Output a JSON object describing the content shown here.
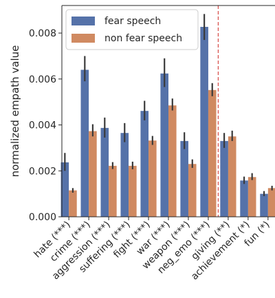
{
  "chart_data": {
    "type": "bar",
    "title": "",
    "xlabel": "",
    "ylabel": "normalized empath value",
    "ylim": [
      0,
      0.0092
    ],
    "yticks": [
      "0.000",
      "0.002",
      "0.004",
      "0.006",
      "0.008"
    ],
    "ytick_values": [
      0,
      0.002,
      0.004,
      0.006,
      0.008
    ],
    "grid": false,
    "legend_position": "top-left",
    "categories": [
      "hate (***)",
      "crime (***)",
      "aggression (***)",
      "suffering (***)",
      "fight (***)",
      "war (***)",
      "weapon (***)",
      "neg_emo (***)",
      "giving (**)",
      "achievement (*)",
      "fun (*)"
    ],
    "series": [
      {
        "name": "fear speech",
        "color": "#5572a9",
        "values": [
          0.00237,
          0.0064,
          0.00387,
          0.00365,
          0.00461,
          0.00624,
          0.0033,
          0.00827,
          0.0033,
          0.00158,
          0.001
        ],
        "error_low": [
          0.002,
          0.0059,
          0.00345,
          0.00325,
          0.0042,
          0.00565,
          0.00295,
          0.0077,
          0.003,
          0.00143,
          0.0009
        ],
        "error_high": [
          0.00278,
          0.007,
          0.00432,
          0.00408,
          0.00505,
          0.0069,
          0.00368,
          0.00883,
          0.00365,
          0.00175,
          0.00112
        ]
      },
      {
        "name": "non fear speech",
        "color": "#d08a61",
        "values": [
          0.00115,
          0.00373,
          0.00222,
          0.00222,
          0.00332,
          0.00485,
          0.0023,
          0.00552,
          0.0035,
          0.00173,
          0.00125
        ],
        "error_low": [
          0.00105,
          0.0035,
          0.00208,
          0.00207,
          0.00313,
          0.00463,
          0.00213,
          0.00525,
          0.0033,
          0.0016,
          0.00115
        ],
        "error_high": [
          0.00125,
          0.00403,
          0.00238,
          0.0024,
          0.00352,
          0.00515,
          0.0025,
          0.00582,
          0.00375,
          0.0019,
          0.00135
        ]
      }
    ],
    "error_bar_color": "#3a3a3a",
    "reference_line": {
      "after_category": "neg_emo (***)",
      "color": "#d9534f",
      "style": "dashed"
    }
  }
}
